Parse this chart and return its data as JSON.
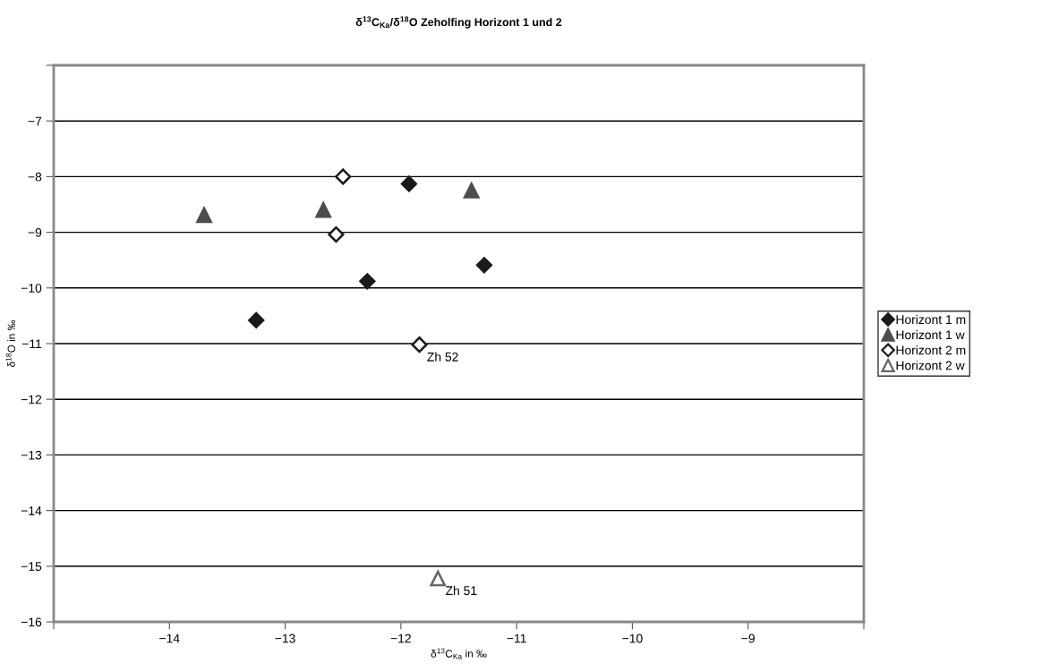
{
  "chart_data": {
    "type": "scatter",
    "title": "δ$^{13}$C$_{Ka}$/δ$^{18}$O Zeholfing Horizont 1 und 2",
    "xlabel": "δ$^{13}$C$_{Ka}$ in ‰",
    "ylabel": "δ$^{18}$O in ‰",
    "xlim": [
      -15,
      -8
    ],
    "xticks": [
      {
        "value": -15,
        "label": null
      },
      -14,
      -13,
      -12,
      -11,
      -10,
      -9,
      {
        "value": -8,
        "label": null
      }
    ],
    "ylim": [
      -16,
      -6
    ],
    "yticks": [
      -16,
      -15,
      -14,
      -13,
      -12,
      -11,
      -10,
      -9,
      -8,
      -7,
      {
        "value": -6,
        "label": null
      }
    ],
    "grid": "y",
    "legend": "right",
    "series": [
      {
        "name": "Horizont 1 m",
        "color": "#1a1a1a",
        "marker": "diamond",
        "x": [
          -11.93,
          -11.28,
          -12.29,
          -13.25
        ],
        "values": [
          -8.13,
          -9.59,
          -9.88,
          -10.58
        ]
      },
      {
        "name": "Horizont 1 w",
        "color": "#4d4d4d",
        "marker": "triangle",
        "x": [
          -11.39,
          -13.7,
          -12.67
        ],
        "values": [
          -8.25,
          -8.69,
          -8.6
        ]
      },
      {
        "name": "Horizont 2 m",
        "color": "#1a1a1a",
        "marker": "diamond",
        "x": [
          -12.5,
          -12.56,
          -11.84
        ],
        "values": [
          -8.0,
          -9.04,
          -11.02
        ]
      },
      {
        "name": "Horizont 2 w",
        "color": "#666666",
        "marker": "triangle",
        "x": [
          -11.68
        ],
        "values": [
          -15.22
        ]
      }
    ],
    "annotations": [
      {
        "text": "Zh 52",
        "x": -11.84,
        "y": -11.02
      },
      {
        "text": "Zh 51",
        "x": -11.68,
        "y": -15.22
      }
    ]
  }
}
